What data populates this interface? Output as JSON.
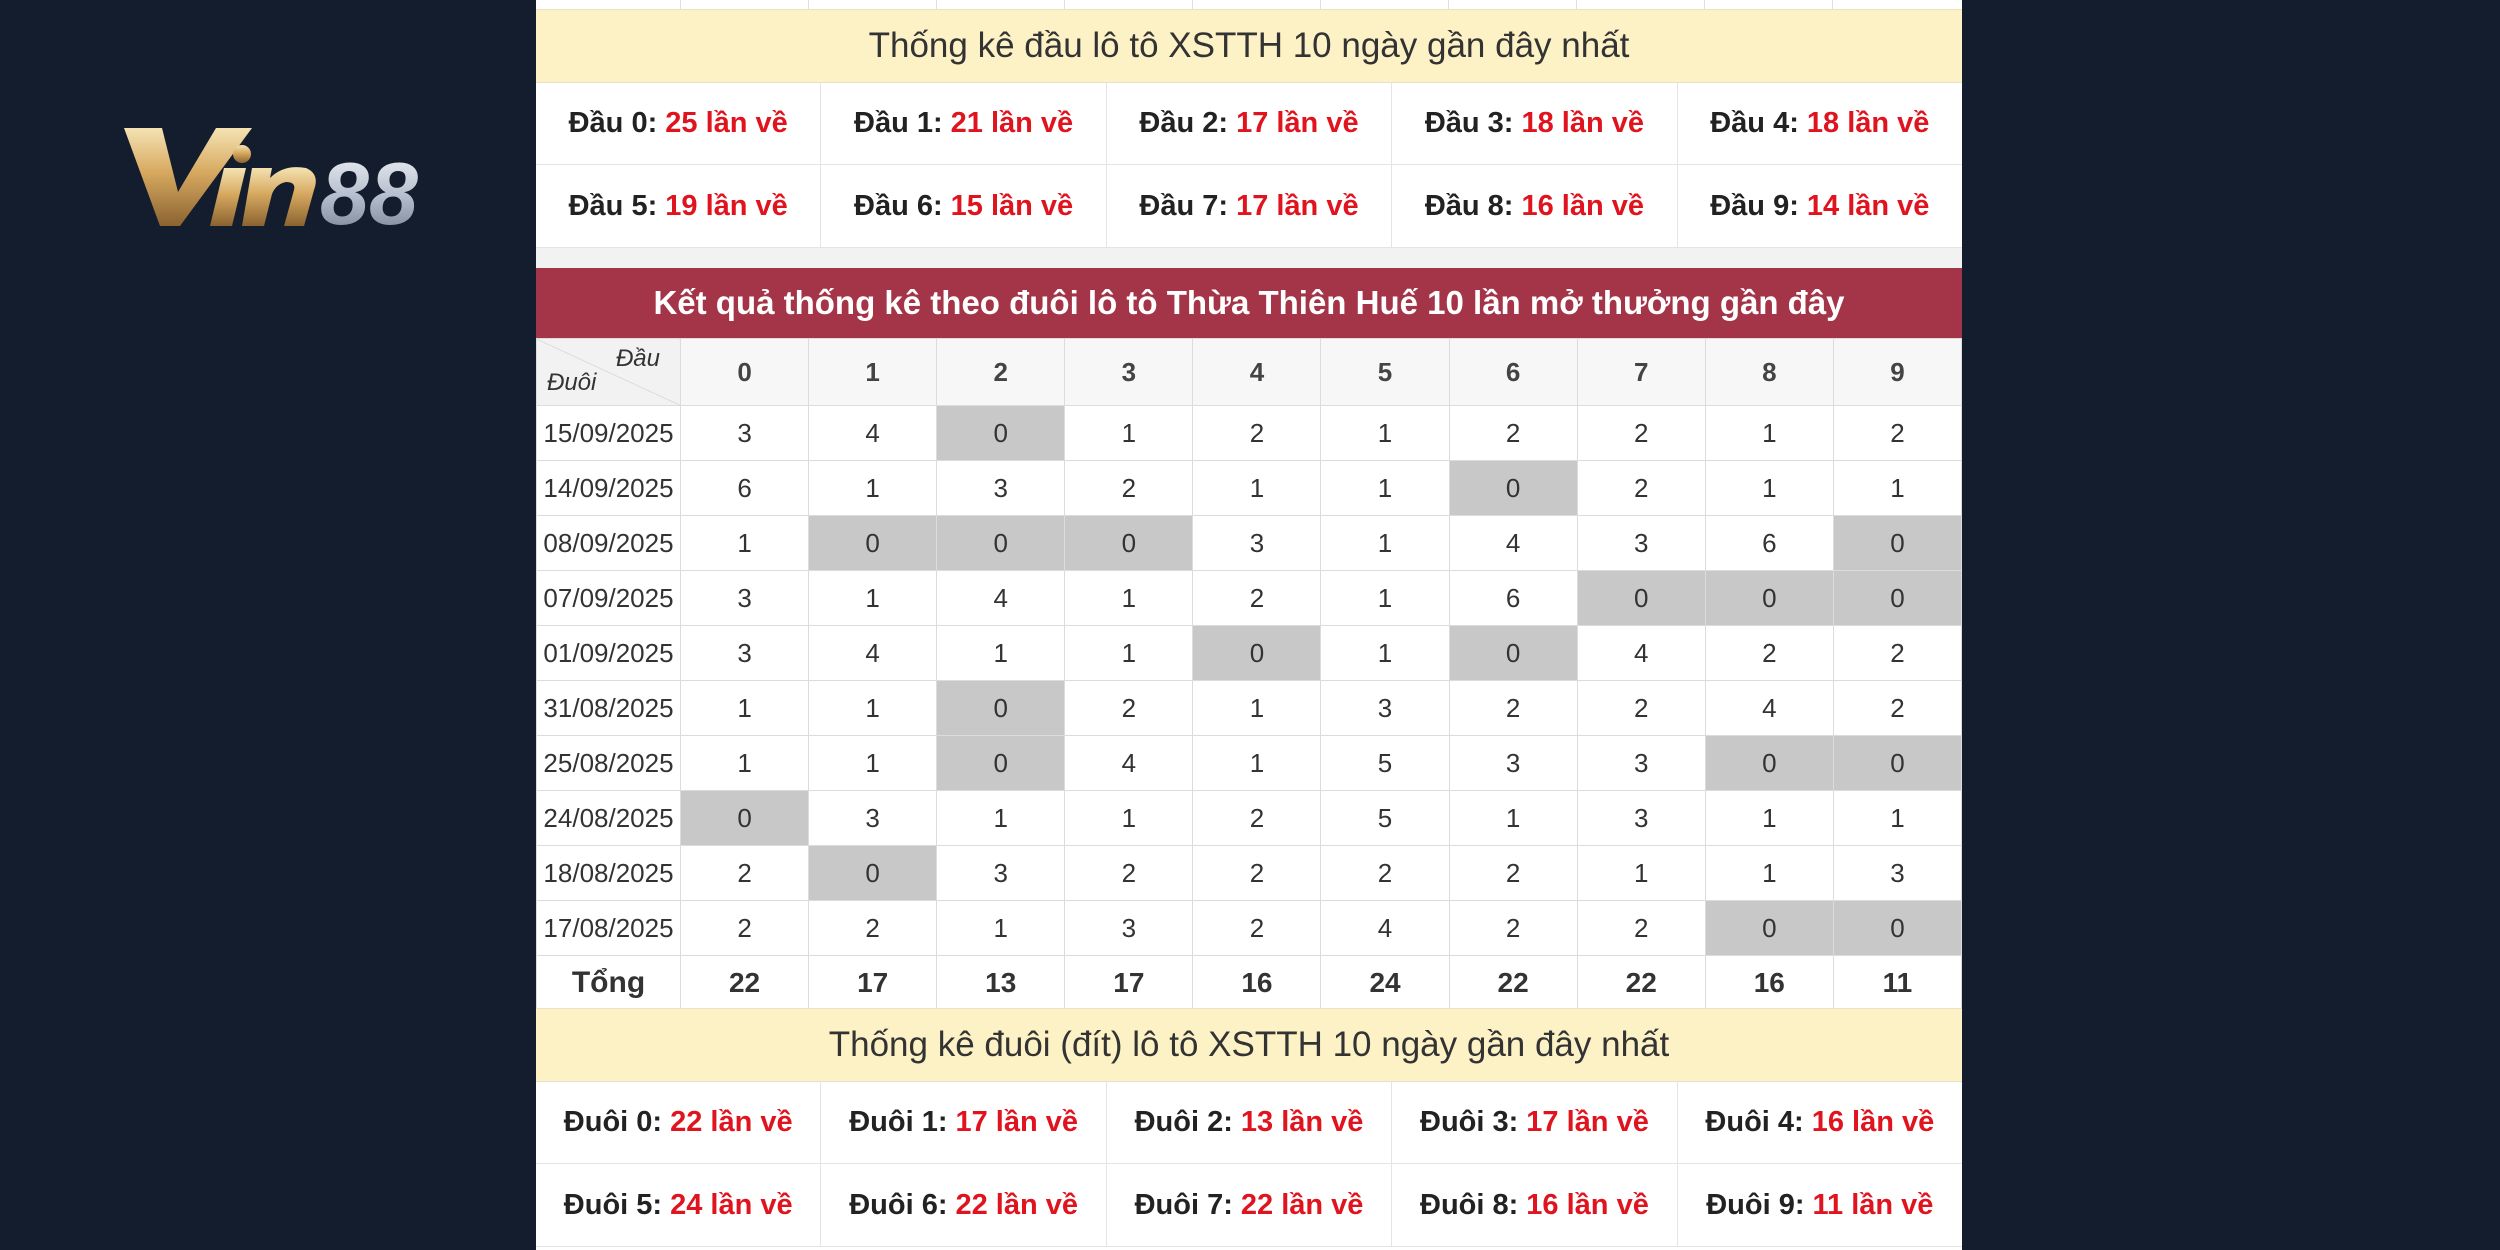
{
  "logo": {
    "text": "Vin88",
    "icon": "vin88-logo"
  },
  "head_section": {
    "title": "Thống kê đầu lô tô XSTTH 10 ngày gần đây nhất",
    "rows": [
      [
        {
          "label": "Đầu 0:",
          "count": "25 lần về"
        },
        {
          "label": "Đầu 1:",
          "count": "21 lần về"
        },
        {
          "label": "Đầu 2:",
          "count": "17 lần về"
        },
        {
          "label": "Đầu 3:",
          "count": "18 lần về"
        },
        {
          "label": "Đầu 4:",
          "count": "18 lần về"
        }
      ],
      [
        {
          "label": "Đầu 5:",
          "count": "19 lần về"
        },
        {
          "label": "Đầu 6:",
          "count": "15 lần về"
        },
        {
          "label": "Đầu 7:",
          "count": "17 lần về"
        },
        {
          "label": "Đầu 8:",
          "count": "16 lần về"
        },
        {
          "label": "Đầu 9:",
          "count": "14 lần về"
        }
      ]
    ]
  },
  "tail_table": {
    "title": "Kết quả thống kê theo đuôi lô tô Thừa Thiên Huế 10 lần mở thưởng gần đây",
    "corner_top": "Đầu",
    "corner_bottom": "Đuôi",
    "columns": [
      "0",
      "1",
      "2",
      "3",
      "4",
      "5",
      "6",
      "7",
      "8",
      "9"
    ],
    "rows": [
      {
        "date": "15/09/2025",
        "values": [
          "3",
          "4",
          "0",
          "1",
          "2",
          "1",
          "2",
          "2",
          "1",
          "2"
        ]
      },
      {
        "date": "14/09/2025",
        "values": [
          "6",
          "1",
          "3",
          "2",
          "1",
          "1",
          "0",
          "2",
          "1",
          "1"
        ]
      },
      {
        "date": "08/09/2025",
        "values": [
          "1",
          "0",
          "0",
          "0",
          "3",
          "1",
          "4",
          "3",
          "6",
          "0"
        ]
      },
      {
        "date": "07/09/2025",
        "values": [
          "3",
          "1",
          "4",
          "1",
          "2",
          "1",
          "6",
          "0",
          "0",
          "0"
        ]
      },
      {
        "date": "01/09/2025",
        "values": [
          "3",
          "4",
          "1",
          "1",
          "0",
          "1",
          "0",
          "4",
          "2",
          "2"
        ]
      },
      {
        "date": "31/08/2025",
        "values": [
          "1",
          "1",
          "0",
          "2",
          "1",
          "3",
          "2",
          "2",
          "4",
          "2"
        ]
      },
      {
        "date": "25/08/2025",
        "values": [
          "1",
          "1",
          "0",
          "4",
          "1",
          "5",
          "3",
          "3",
          "0",
          "0"
        ]
      },
      {
        "date": "24/08/2025",
        "values": [
          "0",
          "3",
          "1",
          "1",
          "2",
          "5",
          "1",
          "3",
          "1",
          "1"
        ]
      },
      {
        "date": "18/08/2025",
        "values": [
          "2",
          "0",
          "3",
          "2",
          "2",
          "2",
          "2",
          "1",
          "1",
          "3"
        ]
      },
      {
        "date": "17/08/2025",
        "values": [
          "2",
          "2",
          "1",
          "3",
          "2",
          "4",
          "2",
          "2",
          "0",
          "0"
        ]
      }
    ],
    "total_label": "Tổng",
    "totals": [
      "22",
      "17",
      "13",
      "17",
      "16",
      "24",
      "22",
      "22",
      "16",
      "11"
    ],
    "zero_highlight_color": "#c8c8c8"
  },
  "tail_section": {
    "title": "Thống kê đuôi (đít) lô tô XSTTH 10 ngày gần đây nhất",
    "rows": [
      [
        {
          "label": "Đuôi 0:",
          "count": "22 lần về"
        },
        {
          "label": "Đuôi 1:",
          "count": "17 lần về"
        },
        {
          "label": "Đuôi 2:",
          "count": "13 lần về"
        },
        {
          "label": "Đuôi 3:",
          "count": "17 lần về"
        },
        {
          "label": "Đuôi 4:",
          "count": "16 lần về"
        }
      ],
      [
        {
          "label": "Đuôi 5:",
          "count": "24 lần về"
        },
        {
          "label": "Đuôi 6:",
          "count": "22 lần về"
        },
        {
          "label": "Đuôi 7:",
          "count": "22 lần về"
        },
        {
          "label": "Đuôi 8:",
          "count": "16 lần về"
        },
        {
          "label": "Đuôi 9:",
          "count": "11 lần về"
        }
      ]
    ]
  },
  "colors": {
    "background": "#141d2d",
    "header_red": "#a43548",
    "count_red": "#e0141e",
    "yellow_bar": "#fdf1c6"
  }
}
